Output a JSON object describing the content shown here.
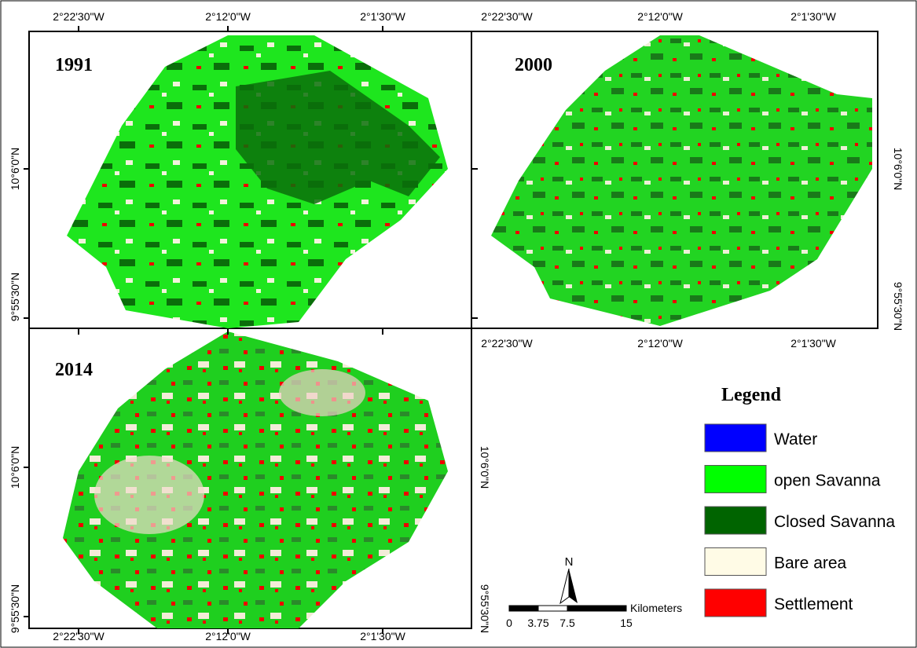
{
  "panels": [
    {
      "year": "1991",
      "top_labels": [
        "2°22'30\"W",
        "2°12'0\"W",
        "2°1'30\"W"
      ],
      "left_labels": [
        "10°6'0\"N",
        "9°55'30\"N"
      ]
    },
    {
      "year": "2000",
      "top_labels": [
        "2°22'30\"W",
        "2°12'0\"W",
        "2°1'30\"W"
      ],
      "bottom_labels": [
        "2°22'30\"W",
        "2°12'0\"W",
        "2°1'30\"W"
      ],
      "right_labels": [
        "10°6'0\"N",
        "9°55'30\"N"
      ]
    },
    {
      "year": "2014",
      "bottom_labels": [
        "2°22'30\"W",
        "2°12'0\"W",
        "2°1'30\"W"
      ],
      "left_labels": [
        "10°6'0\"N",
        "9°55'30\"N"
      ],
      "right_labels": [
        "10°6'0\"N",
        "9°55'30\"N"
      ]
    }
  ],
  "legend": {
    "title": "Legend",
    "items": [
      {
        "label": "Water",
        "color": "#0000ff"
      },
      {
        "label": "open Savanna",
        "color": "#00ff00"
      },
      {
        "label": "Closed Savanna",
        "color": "#006400"
      },
      {
        "label": "Bare area",
        "color": "#fffbe6"
      },
      {
        "label": "Settlement",
        "color": "#ff0000"
      }
    ]
  },
  "scale_bar": {
    "ticks": [
      "0",
      "3.75",
      "7.5",
      "15"
    ],
    "unit": "Kilometers"
  },
  "north_arrow": "N"
}
